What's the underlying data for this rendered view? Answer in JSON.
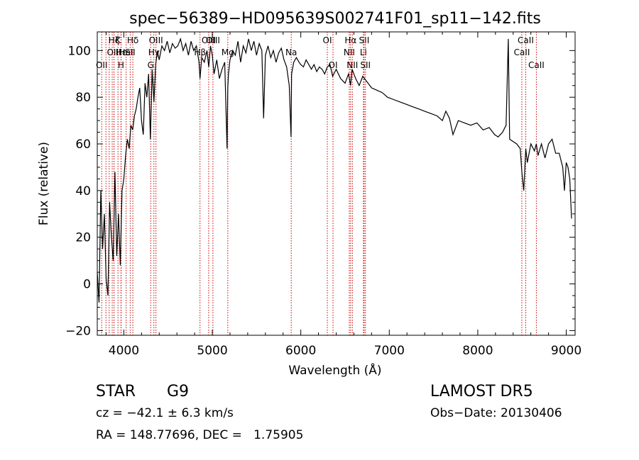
{
  "chart_data": {
    "type": "line",
    "title": "spec−56389−HD095639S002741F01_sp11−142.fits",
    "xlabel": "Wavelength (Å)",
    "ylabel": "Flux (relative)",
    "xlim": [
      3700,
      9100
    ],
    "ylim": [
      -22,
      108
    ],
    "xticks": [
      4000,
      5000,
      6000,
      7000,
      8000,
      9000
    ],
    "yticks": [
      -20,
      0,
      20,
      40,
      60,
      80,
      100
    ],
    "grid": false,
    "line_color": "#000000",
    "marker_color": "#cc0000",
    "series": [
      {
        "x": [
          3700,
          3720,
          3740,
          3760,
          3780,
          3800,
          3820,
          3840,
          3860,
          3880,
          3900,
          3920,
          3940,
          3960,
          3980,
          4000,
          4020,
          4040,
          4060,
          4080,
          4100,
          4120,
          4140,
          4160,
          4180,
          4200,
          4220,
          4240,
          4260,
          4280,
          4300,
          4320,
          4340,
          4360,
          4380,
          4400,
          4430,
          4460,
          4490,
          4520,
          4550,
          4580,
          4610,
          4640,
          4670,
          4700,
          4730,
          4760,
          4790,
          4820,
          4850,
          4861,
          4880,
          4910,
          4940,
          4960,
          4980,
          5000,
          5020,
          5050,
          5080,
          5110,
          5140,
          5167,
          5175,
          5183,
          5200,
          5230,
          5260,
          5290,
          5320,
          5350,
          5380,
          5410,
          5440,
          5470,
          5500,
          5530,
          5560,
          5580,
          5600,
          5630,
          5660,
          5690,
          5720,
          5750,
          5780,
          5810,
          5840,
          5870,
          5890,
          5896,
          5920,
          5950,
          5980,
          6000,
          6030,
          6060,
          6090,
          6120,
          6150,
          6180,
          6210,
          6240,
          6270,
          6300,
          6330,
          6360,
          6400,
          6450,
          6500,
          6540,
          6563,
          6580,
          6620,
          6660,
          6700,
          6740,
          6800,
          6860,
          6920,
          6980,
          7050,
          7120,
          7190,
          7260,
          7330,
          7400,
          7470,
          7540,
          7600,
          7640,
          7680,
          7720,
          7780,
          7850,
          7920,
          7990,
          8060,
          8130,
          8190,
          8230,
          8280,
          8320,
          8345,
          8360,
          8400,
          8440,
          8480,
          8498,
          8520,
          8542,
          8560,
          8600,
          8640,
          8662,
          8680,
          8720,
          8760,
          8800,
          8840,
          8880,
          8920,
          8960,
          8980,
          9000,
          9020,
          9040,
          9060
        ],
        "y": [
          5,
          -8,
          40,
          15,
          30,
          2,
          -5,
          35,
          20,
          10,
          48,
          12,
          30,
          8,
          40,
          45,
          55,
          62,
          58,
          68,
          66,
          72,
          75,
          80,
          84,
          70,
          64,
          86,
          80,
          90,
          62,
          92,
          78,
          94,
          100,
          96,
          102,
          100,
          104,
          99,
          103,
          101,
          102,
          105,
          100,
          103,
          98,
          104,
          100,
          102,
          95,
          88,
          97,
          95,
          100,
          93,
          102,
          98,
          90,
          96,
          88,
          92,
          95,
          58,
          84,
          90,
          96,
          100,
          98,
          104,
          95,
          102,
          99,
          105,
          100,
          104,
          98,
          103,
          100,
          71,
          98,
          102,
          97,
          100,
          95,
          99,
          101,
          96,
          93,
          85,
          63,
          90,
          95,
          97,
          95,
          94,
          93,
          96,
          94,
          92,
          94,
          91,
          93,
          92,
          90,
          93,
          94,
          89,
          92,
          88,
          86,
          90,
          85,
          92,
          88,
          85,
          89,
          87,
          84,
          83,
          82,
          80,
          79,
          78,
          77,
          76,
          75,
          74,
          73,
          72,
          70,
          74,
          71,
          64,
          70,
          69,
          68,
          69,
          66,
          67,
          64,
          63,
          65,
          68,
          105,
          62,
          61,
          60,
          58,
          48,
          40,
          58,
          52,
          60,
          57,
          60,
          55,
          60,
          54,
          60,
          62,
          56,
          56,
          50,
          40,
          52,
          50,
          45,
          28
        ]
      }
    ],
    "line_markers": [
      {
        "wl": 3750,
        "label": "OII",
        "tier": 3
      },
      {
        "wl": 3798,
        "label": "",
        "tier": 0
      },
      {
        "wl": 3835,
        "label": "",
        "tier": 0
      },
      {
        "wl": 3869,
        "label": "",
        "tier": 0
      },
      {
        "wl": 3889,
        "label": "Hζ",
        "tier": 1
      },
      {
        "wl": 3934,
        "label": "K",
        "tier": 1
      },
      {
        "wl": 3889,
        "label": "OIII",
        "tier": 2
      },
      {
        "wl": 3968,
        "label": "H",
        "tier": 3
      },
      {
        "wl": 3970,
        "label": "Hε",
        "tier": 2
      },
      {
        "wl": 4026,
        "label": "HeI",
        "tier": 2
      },
      {
        "wl": 4072,
        "label": "SII",
        "tier": 2
      },
      {
        "wl": 4102,
        "label": "Hδ",
        "tier": 1
      },
      {
        "wl": 4304,
        "label": "G",
        "tier": 3
      },
      {
        "wl": 4340,
        "label": "Hγ",
        "tier": 2
      },
      {
        "wl": 4363,
        "label": "OIII",
        "tier": 1
      },
      {
        "wl": 4861,
        "label": "Hβ",
        "tier": 2
      },
      {
        "wl": 4959,
        "label": "OIII",
        "tier": 1
      },
      {
        "wl": 5007,
        "label": "OIII",
        "tier": 1
      },
      {
        "wl": 5175,
        "label": "Mg",
        "tier": 2
      },
      {
        "wl": 5892,
        "label": "Na",
        "tier": 2
      },
      {
        "wl": 6300,
        "label": "OI",
        "tier": 1
      },
      {
        "wl": 6364,
        "label": "OI",
        "tier": 3
      },
      {
        "wl": 6548,
        "label": "NII",
        "tier": 2
      },
      {
        "wl": 6563,
        "label": "Hα",
        "tier": 1
      },
      {
        "wl": 6583,
        "label": "NII",
        "tier": 3
      },
      {
        "wl": 6708,
        "label": "Li",
        "tier": 2
      },
      {
        "wl": 6716,
        "label": "SII",
        "tier": 1
      },
      {
        "wl": 6731,
        "label": "SII",
        "tier": 3
      },
      {
        "wl": 8498,
        "label": "CaII",
        "tier": 2
      },
      {
        "wl": 8542,
        "label": "CaII",
        "tier": 1
      },
      {
        "wl": 8662,
        "label": "CaII",
        "tier": 3
      }
    ]
  },
  "info": {
    "object_class": "STAR",
    "subclass": "G9",
    "survey": "LAMOST DR5",
    "cz": "cz = −42.1 ± 6.3 km/s",
    "obs_date": "Obs−Date: 20130406",
    "coords": "RA = 148.77696, DEC =   1.75905"
  }
}
